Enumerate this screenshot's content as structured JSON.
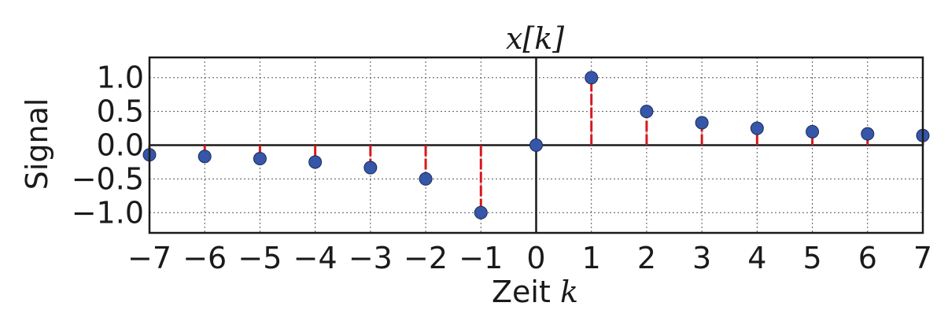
{
  "chart_data": {
    "type": "stem",
    "title": "x[k]",
    "xlabel": {
      "text": "Zeit",
      "math": "k"
    },
    "ylabel": "Signal",
    "x": [
      -7,
      -6,
      -5,
      -4,
      -3,
      -2,
      -1,
      0,
      1,
      2,
      3,
      4,
      5,
      6,
      7
    ],
    "values": [
      -0.143,
      -0.167,
      -0.2,
      -0.25,
      -0.333,
      -0.5,
      -1.0,
      0.0,
      1.0,
      0.5,
      0.333,
      0.25,
      0.2,
      0.167,
      0.143
    ],
    "xlim": [
      -7,
      7
    ],
    "ylim": [
      -1.3,
      1.3
    ],
    "xticks": [
      -7,
      -6,
      -5,
      -4,
      -3,
      -2,
      -1,
      0,
      1,
      2,
      3,
      4,
      5,
      6,
      7
    ],
    "xtick_labels": [
      "−7",
      "−6",
      "−5",
      "−4",
      "−3",
      "−2",
      "−1",
      "0",
      "1",
      "2",
      "3",
      "4",
      "5",
      "6",
      "7"
    ],
    "yticks": [
      1.0,
      0.5,
      0.0,
      -0.5,
      -1.0
    ],
    "ytick_labels": [
      "1.0",
      "0.5",
      "0.0",
      "−0.5",
      "−1.0"
    ],
    "grid": true,
    "colors": {
      "marker": "#3656a8",
      "marker_edge": "#1b2c5a",
      "stem": "#d7191c",
      "axis": "#1a1a1a",
      "grid": "#555555"
    }
  }
}
